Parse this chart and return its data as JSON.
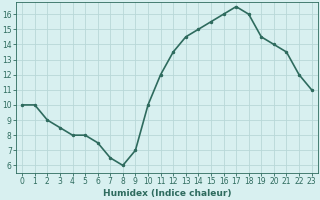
{
  "x": [
    0,
    1,
    2,
    3,
    4,
    5,
    6,
    7,
    8,
    9,
    10,
    11,
    12,
    13,
    14,
    15,
    16,
    17,
    18,
    19,
    20,
    21,
    22,
    23
  ],
  "y": [
    10,
    10,
    9,
    8.5,
    8,
    8,
    7.5,
    6.5,
    6,
    7,
    10,
    12,
    13.5,
    14.5,
    15,
    15.5,
    16,
    16.5,
    16,
    14.5,
    14,
    13.5,
    12,
    11
  ],
  "line_color": "#2e6b5e",
  "marker": ".",
  "marker_size": 3,
  "bg_color": "#d8f0f0",
  "grid_color": "#b8d8d8",
  "xlabel": "Humidex (Indice chaleur)",
  "xlim": [
    -0.5,
    23.5
  ],
  "ylim": [
    5.5,
    16.8
  ],
  "xticks": [
    0,
    1,
    2,
    3,
    4,
    5,
    6,
    7,
    8,
    9,
    10,
    11,
    12,
    13,
    14,
    15,
    16,
    17,
    18,
    19,
    20,
    21,
    22,
    23
  ],
  "yticks": [
    6,
    7,
    8,
    9,
    10,
    11,
    12,
    13,
    14,
    15,
    16
  ],
  "tick_fontsize": 5.5,
  "xlabel_fontsize": 6.5,
  "line_width": 1.2
}
